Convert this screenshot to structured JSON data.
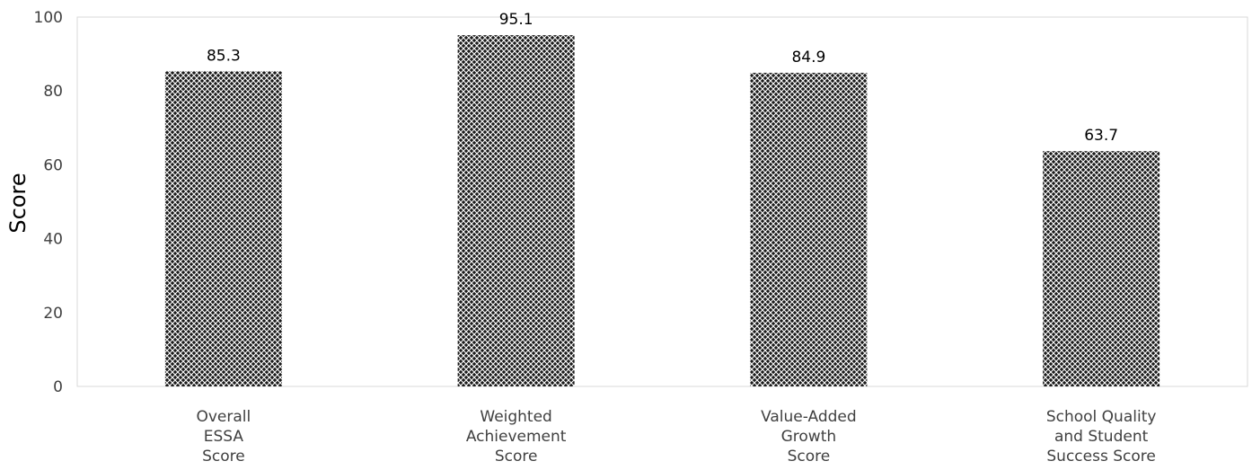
{
  "chart_data": {
    "type": "bar",
    "categories": [
      [
        "Overall",
        "ESSA",
        "Score"
      ],
      [
        "Weighted",
        "Achievement",
        "Score"
      ],
      [
        "Value-Added",
        "Growth",
        "Score"
      ],
      [
        "School Quality",
        "and Student",
        "Success Score"
      ]
    ],
    "values": [
      85.3,
      95.1,
      84.9,
      63.7
    ],
    "data_labels": [
      "85.3",
      "95.1",
      "84.9",
      "63.7"
    ],
    "ylabel": "Score",
    "xlabel": "",
    "ylim": [
      0,
      100
    ],
    "yticks": [
      0,
      20,
      40,
      60,
      80,
      100
    ],
    "grid": false,
    "legend": "none",
    "colors": {
      "bar_fill": "#1a1a1a",
      "bar_pattern": "#ffffff",
      "frame": "#d9d9d9",
      "text": "#404040"
    }
  }
}
